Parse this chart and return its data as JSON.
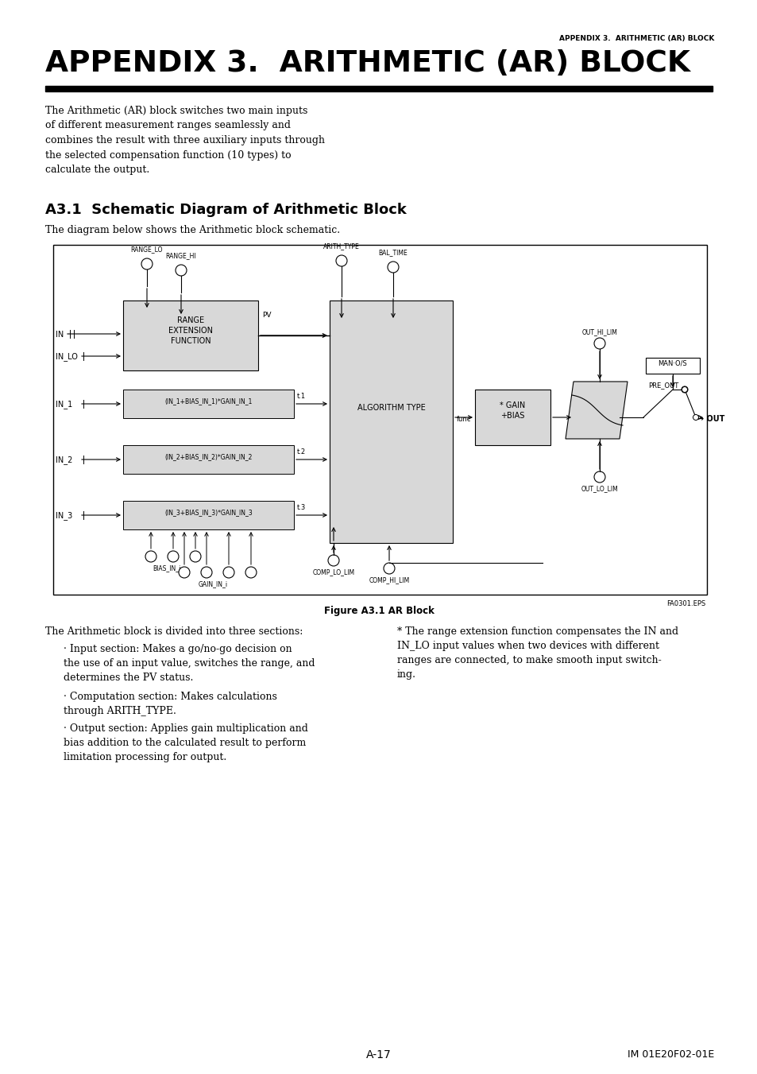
{
  "page_title_small": "APPENDIX 3.  ARITHMETIC (AR) BLOCK",
  "page_title_large": "APPENDIX 3.  ARITHMETIC (AR) BLOCK",
  "intro_text": "The Arithmetic (AR) block switches two main inputs\nof different measurement ranges seamlessly and\ncombines the result with three auxiliary inputs through\nthe selected compensation function (10 types) to\ncalculate the output.",
  "section_title": "A3.1  Schematic Diagram of Arithmetic Block",
  "section_intro": "The diagram below shows the Arithmetic block schematic.",
  "figure_caption": "Figure A3.1 AR Block",
  "figure_id": "FA0301.EPS",
  "desc_left_title": "The Arithmetic block is divided into three sections:",
  "desc_left_b1": "· Input section: Makes a go/no-go decision on\nthe use of an input value, switches the range, and\ndetermines the PV status.",
  "desc_left_b2": "· Computation section: Makes calculations\nthrough ARITH_TYPE.",
  "desc_left_b3": "· Output section: Applies gain multiplication and\nbias addition to the calculated result to perform\nlimitation processing for output.",
  "desc_right": "* The range extension function compensates the IN and\nIN_LO input values when two devices with different\nranges are connected, to make smooth input switch-\ning.",
  "page_number": "A-17",
  "doc_number": "IM 01E20F02-01E",
  "bg_color": "#ffffff",
  "text_color": "#000000"
}
